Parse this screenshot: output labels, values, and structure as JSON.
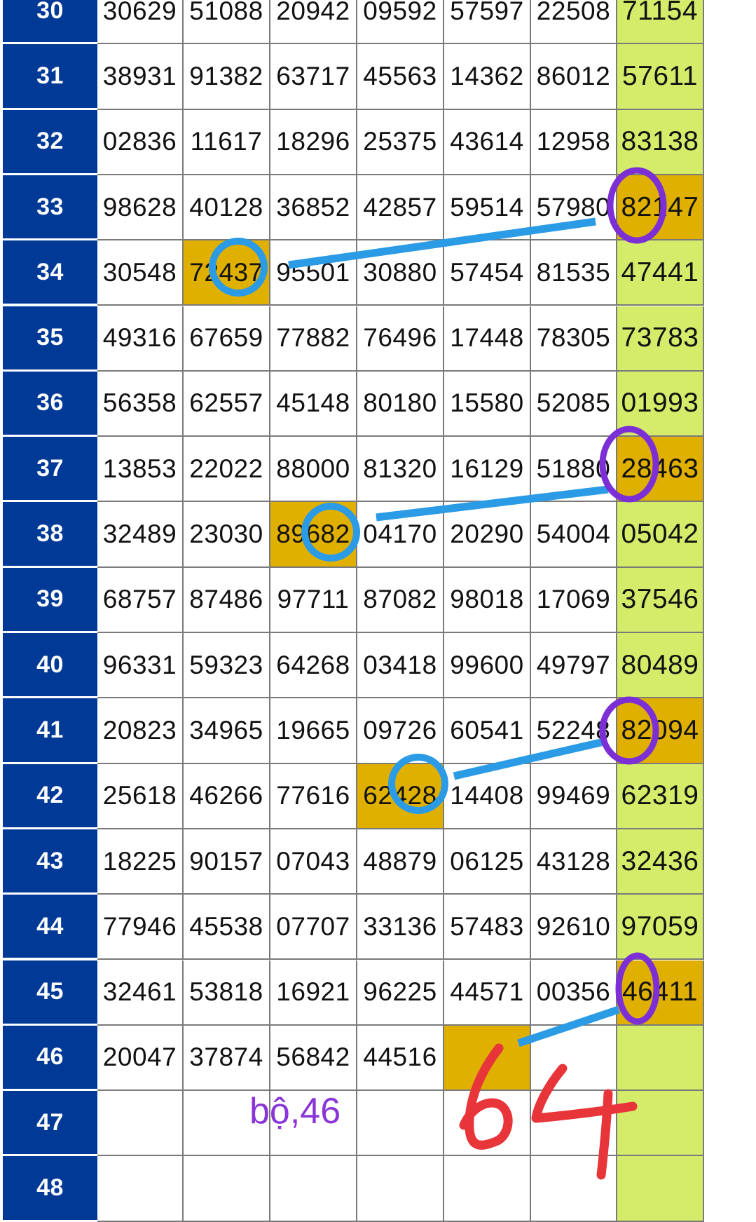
{
  "table": {
    "rows": [
      {
        "label": "30",
        "values": [
          "30629",
          "51088",
          "20942",
          "09592",
          "57597",
          "22508",
          "71154"
        ]
      },
      {
        "label": "31",
        "values": [
          "38931",
          "91382",
          "63717",
          "45563",
          "14362",
          "86012",
          "57611"
        ]
      },
      {
        "label": "32",
        "values": [
          "02836",
          "11617",
          "18296",
          "25375",
          "43614",
          "12958",
          "83138"
        ]
      },
      {
        "label": "33",
        "values": [
          "98628",
          "40128",
          "36852",
          "42857",
          "59514",
          "57980",
          "82147"
        ],
        "highlight": [
          6
        ]
      },
      {
        "label": "34",
        "values": [
          "30548",
          "72437",
          "95501",
          "30880",
          "57454",
          "81535",
          "47441"
        ],
        "highlight": [
          1
        ]
      },
      {
        "label": "35",
        "values": [
          "49316",
          "67659",
          "77882",
          "76496",
          "17448",
          "78305",
          "73783"
        ]
      },
      {
        "label": "36",
        "values": [
          "56358",
          "62557",
          "45148",
          "80180",
          "15580",
          "52085",
          "01993"
        ]
      },
      {
        "label": "37",
        "values": [
          "13853",
          "22022",
          "88000",
          "81320",
          "16129",
          "51880",
          "28463"
        ],
        "highlight": [
          6
        ]
      },
      {
        "label": "38",
        "values": [
          "32489",
          "23030",
          "89682",
          "04170",
          "20290",
          "54004",
          "05042"
        ],
        "highlight": [
          2
        ]
      },
      {
        "label": "39",
        "values": [
          "68757",
          "87486",
          "97711",
          "87082",
          "98018",
          "17069",
          "37546"
        ]
      },
      {
        "label": "40",
        "values": [
          "96331",
          "59323",
          "64268",
          "03418",
          "99600",
          "49797",
          "80489"
        ]
      },
      {
        "label": "41",
        "values": [
          "20823",
          "34965",
          "19665",
          "09726",
          "60541",
          "52248",
          "82094"
        ],
        "highlight": [
          6
        ]
      },
      {
        "label": "42",
        "values": [
          "25618",
          "46266",
          "77616",
          "62428",
          "14408",
          "99469",
          "62319"
        ],
        "highlight": [
          3
        ]
      },
      {
        "label": "43",
        "values": [
          "18225",
          "90157",
          "07043",
          "48879",
          "06125",
          "43128",
          "32436"
        ]
      },
      {
        "label": "44",
        "values": [
          "77946",
          "45538",
          "07707",
          "33136",
          "57483",
          "92610",
          "97059"
        ]
      },
      {
        "label": "45",
        "values": [
          "32461",
          "53818",
          "16921",
          "96225",
          "44571",
          "00356",
          "46411"
        ],
        "highlight": [
          6
        ]
      },
      {
        "label": "46",
        "values": [
          "20047",
          "37874",
          "56842",
          "44516",
          "",
          "",
          ""
        ],
        "highlight": [
          4
        ]
      },
      {
        "label": "47",
        "values": [
          "",
          "",
          "",
          "",
          "",
          "",
          ""
        ]
      },
      {
        "label": "48",
        "values": [
          "",
          "",
          "",
          "",
          "",
          "",
          ""
        ]
      }
    ]
  },
  "annotations": {
    "note_text": "bộ,46",
    "handwritten_number": "64"
  },
  "colors": {
    "label_bg": "#003a96",
    "last_col_bg": "#d4ec6a",
    "highlight_bg": "#e0b000",
    "circle_blue": "#2b9be6",
    "circle_purple": "#7d2fd6",
    "handwriting_red": "#e8353a"
  }
}
